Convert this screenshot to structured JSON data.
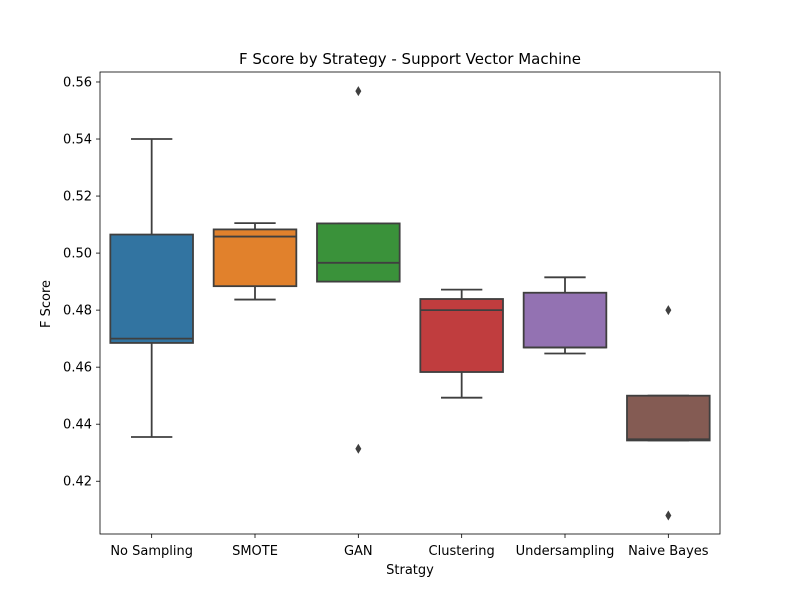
{
  "chart_data": {
    "type": "box",
    "title": "F Score by Strategy - Support Vector Machine",
    "xlabel": "Stratgy",
    "ylabel": "F Score",
    "ylim": [
      0.4015,
      0.5635
    ],
    "yticks": [
      0.42,
      0.44,
      0.46,
      0.48,
      0.5,
      0.52,
      0.54,
      0.56
    ],
    "ytick_labels": [
      "0.42",
      "0.44",
      "0.46",
      "0.48",
      "0.50",
      "0.52",
      "0.54",
      "0.56"
    ],
    "grid": false,
    "categories": [
      "No Sampling",
      "SMOTE",
      "GAN",
      "Clustering",
      "Undersampling",
      "Naive Bayes"
    ],
    "boxes": [
      {
        "category": "No Sampling",
        "color": "#3274a1",
        "whisker_low": 0.4355,
        "q1": 0.4685,
        "median": 0.47,
        "q3": 0.5065,
        "whisker_high": 0.54,
        "outliers": []
      },
      {
        "category": "SMOTE",
        "color": "#e1812c",
        "whisker_low": 0.4837,
        "q1": 0.4884,
        "median": 0.5058,
        "q3": 0.5083,
        "whisker_high": 0.5105,
        "outliers": []
      },
      {
        "category": "GAN",
        "color": "#3a923a",
        "whisker_low": 0.49,
        "q1": 0.49,
        "median": 0.4966,
        "q3": 0.5104,
        "whisker_high": 0.5104,
        "outliers": [
          0.5568,
          0.4314
        ]
      },
      {
        "category": "Clustering",
        "color": "#c03d3e",
        "whisker_low": 0.4493,
        "q1": 0.4583,
        "median": 0.48,
        "q3": 0.4839,
        "whisker_high": 0.4872,
        "outliers": []
      },
      {
        "category": "Undersampling",
        "color": "#9372b2",
        "whisker_low": 0.4648,
        "q1": 0.4669,
        "median": 0.4669,
        "q3": 0.4861,
        "whisker_high": 0.4915,
        "outliers": []
      },
      {
        "category": "Naive Bayes",
        "color": "#845b53",
        "whisker_low": 0.4343,
        "q1": 0.4343,
        "median": 0.4347,
        "q3": 0.45,
        "whisker_high": 0.45,
        "outliers": [
          0.48,
          0.408
        ]
      }
    ]
  }
}
